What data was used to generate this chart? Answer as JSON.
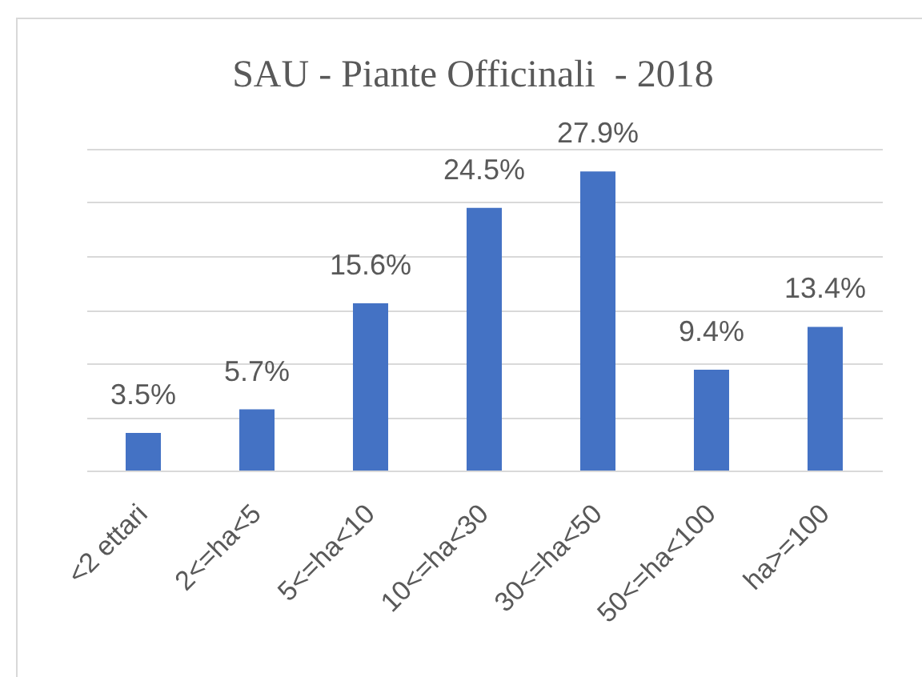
{
  "chart_data": {
    "type": "bar",
    "title": "SAU - Piante Officinali  - 2018",
    "categories": [
      "<2 ettari",
      "2<=ha<5",
      "5<=ha<10",
      "10<=ha<30",
      "30<=ha<50",
      "50<=ha<100",
      "ha>=100"
    ],
    "values": [
      3.5,
      5.7,
      15.6,
      24.5,
      27.9,
      9.4,
      13.4
    ],
    "value_labels": [
      "3.5%",
      "5.7%",
      "15.6%",
      "24.5%",
      "27.9%",
      "9.4%",
      "13.4%"
    ],
    "color": "#4472c4",
    "ylim": [
      0,
      30
    ],
    "yticks": [
      {
        "value": 0,
        "label": null
      },
      {
        "value": 5,
        "label": null
      },
      {
        "value": 10,
        "label": null
      },
      {
        "value": 15,
        "label": null
      },
      {
        "value": 20,
        "label": null
      },
      {
        "value": 25,
        "label": null
      },
      {
        "value": 30,
        "label": null
      }
    ],
    "grid": "y",
    "tick_labels": "x"
  }
}
